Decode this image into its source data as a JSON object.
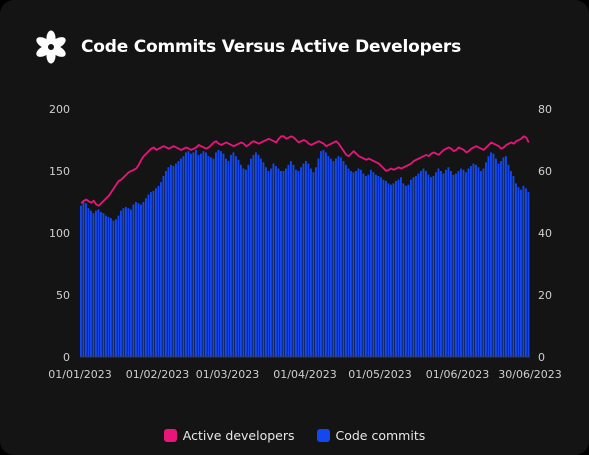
{
  "header": {
    "title": "Code Commits Versus Active Developers",
    "logo_icon": "flower-icon"
  },
  "legend": [
    {
      "label": "Active developers",
      "color": "#e8157a"
    },
    {
      "label": "Code commits",
      "color": "#1148ef"
    }
  ],
  "chart_data": {
    "type": "bar",
    "title": "Code Commits Versus Active Developers",
    "x_start": "2023-01-01",
    "x_end": "2023-06-30",
    "x_tick_labels": [
      "01/01/2023",
      "01/02/2023",
      "01/03/2023",
      "01/04/2023",
      "01/05/2023",
      "01/06/2023",
      "30/06/2023"
    ],
    "y_left": {
      "ticks": [
        "0",
        "50",
        "100",
        "150",
        "200"
      ],
      "lim": [
        0,
        200
      ]
    },
    "y_right": {
      "ticks": [
        "0",
        "20",
        "40",
        "60",
        "80"
      ],
      "lim": [
        0,
        80
      ]
    },
    "grid": false,
    "legend_position": "bottom",
    "series": [
      {
        "name": "Code commits",
        "type": "bar",
        "axis": "left",
        "color": "#1148ef",
        "values": [
          122,
          125,
          124,
          120,
          118,
          116,
          118,
          119,
          117,
          116,
          114,
          113,
          112,
          110,
          111,
          114,
          118,
          120,
          121,
          120,
          119,
          123,
          125,
          124,
          123,
          125,
          128,
          131,
          133,
          134,
          136,
          138,
          141,
          146,
          150,
          153,
          155,
          154,
          156,
          158,
          160,
          162,
          165,
          166,
          164,
          165,
          167,
          163,
          164,
          166,
          165,
          162,
          161,
          160,
          165,
          167,
          166,
          164,
          160,
          158,
          163,
          165,
          162,
          159,
          155,
          152,
          151,
          155,
          160,
          163,
          165,
          163,
          160,
          157,
          153,
          150,
          152,
          156,
          154,
          152,
          150,
          150,
          152,
          155,
          158,
          155,
          151,
          150,
          153,
          156,
          158,
          156,
          152,
          149,
          153,
          160,
          166,
          167,
          165,
          162,
          160,
          158,
          160,
          162,
          161,
          158,
          155,
          152,
          150,
          149,
          150,
          152,
          151,
          148,
          146,
          147,
          151,
          149,
          147,
          146,
          145,
          143,
          142,
          140,
          139,
          140,
          142,
          143,
          145,
          140,
          138,
          139,
          143,
          145,
          146,
          148,
          150,
          152,
          150,
          147,
          145,
          146,
          149,
          152,
          150,
          148,
          151,
          153,
          150,
          147,
          148,
          150,
          152,
          151,
          149,
          152,
          154,
          156,
          155,
          153,
          150,
          152,
          157,
          162,
          165,
          164,
          160,
          156,
          158,
          161,
          162,
          155,
          150,
          146,
          140,
          137,
          135,
          138,
          136,
          133
        ]
      },
      {
        "name": "Active developers",
        "type": "line",
        "axis": "right",
        "color": "#e8157a",
        "values": [
          49.6,
          50.4,
          50.8,
          50.2,
          49.8,
          50.4,
          49.2,
          48.8,
          49.6,
          50.4,
          51.2,
          52.0,
          53.2,
          54.4,
          55.6,
          56.8,
          57.2,
          58.0,
          58.8,
          59.6,
          60.0,
          60.4,
          60.8,
          62.0,
          63.6,
          64.8,
          65.6,
          66.4,
          67.2,
          67.6,
          66.8,
          67.2,
          67.6,
          68.0,
          67.6,
          67.2,
          67.6,
          68.0,
          67.6,
          67.2,
          66.8,
          67.2,
          67.6,
          67.2,
          66.8,
          67.2,
          67.6,
          68.4,
          68.0,
          67.6,
          67.2,
          67.6,
          68.4,
          69.2,
          69.6,
          68.8,
          68.4,
          68.8,
          69.2,
          68.8,
          68.4,
          68.0,
          68.4,
          68.8,
          69.2,
          68.8,
          68.0,
          68.4,
          69.2,
          69.6,
          69.2,
          68.8,
          69.2,
          69.6,
          70.0,
          70.4,
          70.0,
          69.6,
          69.2,
          70.4,
          71.2,
          71.2,
          70.4,
          70.8,
          71.2,
          70.8,
          70.0,
          69.2,
          69.6,
          70.0,
          69.6,
          68.8,
          68.4,
          68.8,
          69.2,
          69.6,
          69.2,
          68.8,
          68.0,
          68.4,
          68.8,
          69.2,
          69.6,
          68.8,
          67.6,
          66.4,
          65.2,
          64.8,
          65.6,
          66.4,
          65.6,
          64.8,
          64.4,
          64.0,
          63.6,
          64.0,
          63.6,
          63.2,
          62.8,
          62.4,
          61.6,
          60.8,
          60.0,
          60.4,
          60.8,
          60.4,
          60.8,
          61.2,
          60.8,
          61.2,
          61.6,
          62.0,
          62.4,
          63.2,
          63.6,
          64.0,
          64.4,
          64.8,
          65.2,
          64.8,
          65.6,
          66.0,
          65.6,
          65.2,
          66.0,
          66.8,
          67.2,
          67.6,
          67.2,
          66.4,
          66.8,
          67.6,
          67.2,
          66.8,
          66.0,
          66.4,
          67.2,
          67.6,
          68.0,
          67.6,
          67.2,
          66.8,
          67.6,
          68.4,
          69.2,
          68.8,
          68.4,
          68.0,
          67.2,
          67.6,
          68.4,
          68.8,
          69.2,
          68.8,
          69.6,
          70.0,
          70.4,
          71.2,
          70.8,
          69.2
        ]
      }
    ]
  }
}
